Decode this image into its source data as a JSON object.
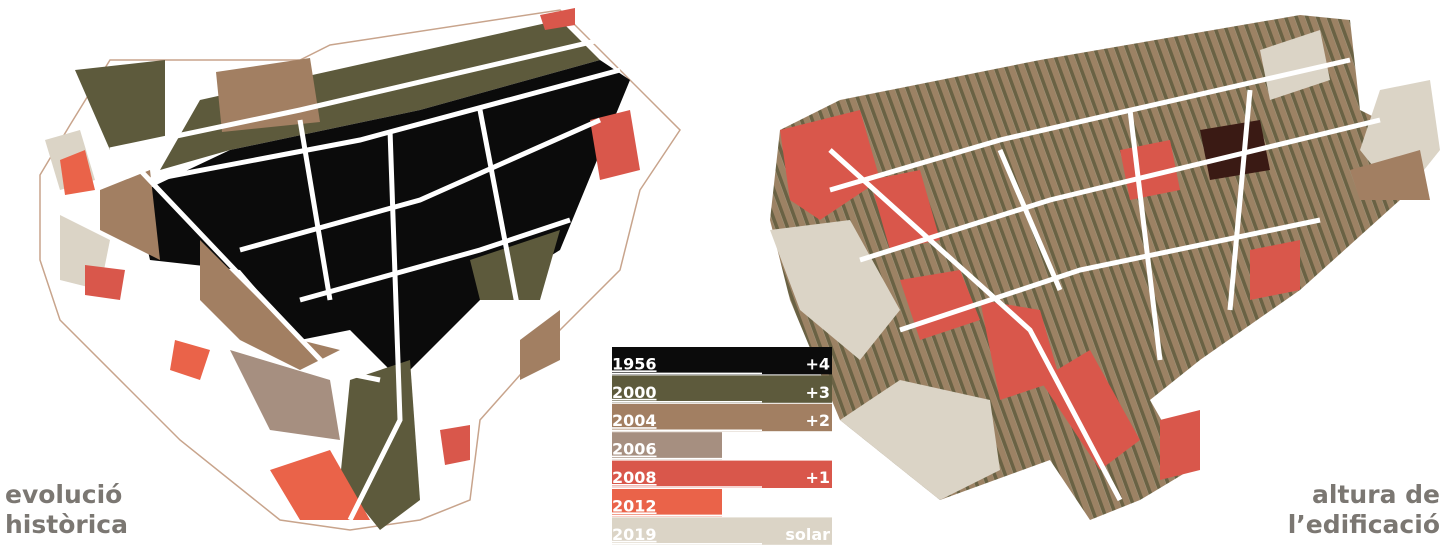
{
  "captions": {
    "left": [
      "evolució",
      "històrica"
    ],
    "right": [
      "altura de",
      "l’edificació"
    ]
  },
  "legend": {
    "rows": [
      {
        "year": "1956",
        "color": "#0b0b0b",
        "height": "+4"
      },
      {
        "year": "2000",
        "color": "#5d5a3c",
        "height": "+3"
      },
      {
        "year": "2004",
        "color": "#a27f62",
        "height": "+2"
      },
      {
        "year": "2006",
        "color": "#a68f80"
      },
      {
        "year": "2008",
        "color": "#d9574b",
        "height": "+1"
      },
      {
        "year": "2012",
        "color": "#ea6349"
      },
      {
        "year": "2019",
        "color": "#dbd4c6",
        "height": "solar"
      }
    ]
  }
}
